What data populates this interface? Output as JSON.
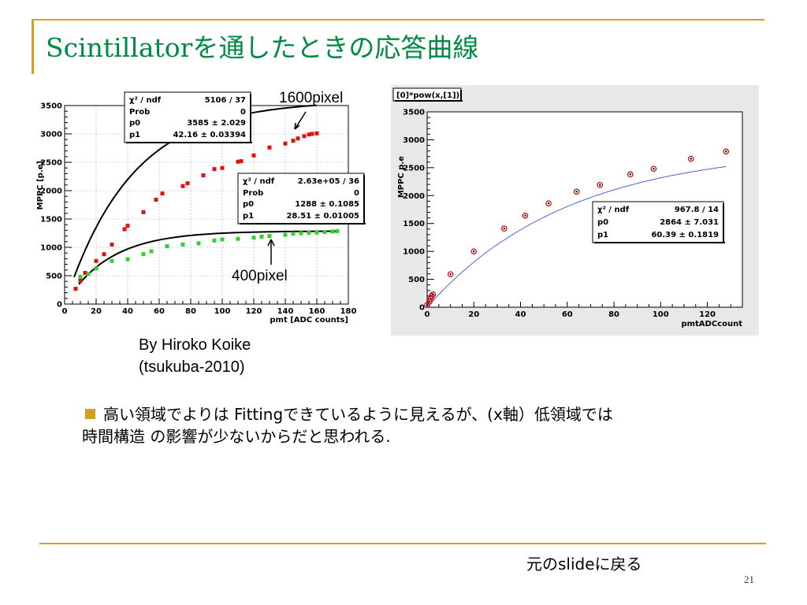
{
  "slide": {
    "title": "Scintillatorを通したときの応答曲線",
    "bullet_line1": "高い領域でよりは Fittingできているように見えるが、(x軸）低領域では",
    "bullet_line2": "時間構造 の影響が少ないからだと思われる.",
    "credit_line1": "By Hiroko Koike",
    "credit_line2": "(tsukuba-2010)",
    "return_link": "元のslideに戻る",
    "page_number": "21",
    "accent_color": "#d4a020",
    "title_color": "#008a44"
  },
  "chart_data": [
    {
      "type": "scatter",
      "title": "",
      "xlabel": "pmt [ADC counts]",
      "ylabel": "MPPC [p.e]",
      "xlim": [
        0,
        180
      ],
      "ylim": [
        0,
        3500
      ],
      "x_ticks": [
        "0",
        "20",
        "40",
        "60",
        "80",
        "100",
        "120",
        "140",
        "160",
        "180"
      ],
      "y_ticks": [
        "0",
        "500",
        "1000",
        "1500",
        "2000",
        "2500",
        "3000",
        "3500"
      ],
      "grid": true,
      "annotations": [
        "1600pixel",
        "400pixel"
      ],
      "series": [
        {
          "name": "1600pixel",
          "color": "#e01010",
          "fit": {
            "p0": 3585,
            "p1": 42.16
          },
          "x": [
            7,
            10,
            13,
            20,
            25,
            30,
            38,
            40,
            50,
            58,
            62,
            75,
            78,
            88,
            95,
            100,
            110,
            112,
            120,
            130,
            140,
            145,
            148,
            152,
            155,
            157,
            160
          ],
          "y": [
            270,
            410,
            550,
            760,
            880,
            1050,
            1320,
            1380,
            1620,
            1840,
            1950,
            2080,
            2130,
            2270,
            2380,
            2400,
            2510,
            2520,
            2620,
            2760,
            2830,
            2880,
            2920,
            2960,
            2990,
            3000,
            3010
          ]
        },
        {
          "name": "400pixel",
          "color": "#30d030",
          "fit": {
            "p0": 1288,
            "p1": 28.51
          },
          "x": [
            10,
            15,
            20,
            30,
            40,
            50,
            55,
            65,
            75,
            85,
            95,
            100,
            110,
            120,
            125,
            130,
            140,
            145,
            150,
            155,
            160,
            165,
            170,
            173
          ],
          "y": [
            480,
            530,
            630,
            760,
            790,
            880,
            930,
            1020,
            1050,
            1070,
            1120,
            1140,
            1150,
            1170,
            1190,
            1200,
            1220,
            1240,
            1250,
            1255,
            1260,
            1270,
            1280,
            1285
          ]
        }
      ],
      "fit_boxes": [
        {
          "chi2_ndf": "5106 / 37",
          "prob": "0",
          "p0": "3585 ± 2.029",
          "p1": "42.16 ± 0.03394"
        },
        {
          "chi2_ndf": "2.63e+05 / 36",
          "prob": "0",
          "p0": "1288 ± 0.1085",
          "p1": "28.51 ± 0.01005"
        }
      ],
      "fit_box_labels": {
        "chi2": "χ² / ndf",
        "prob": "Prob",
        "p0": "p0",
        "p1": "p1"
      }
    },
    {
      "type": "scatter",
      "title": "[0]*pow(x,[1])",
      "xlabel": "pmtADCcount",
      "ylabel": "MPPC p.e",
      "xlim": [
        0,
        135
      ],
      "ylim": [
        0,
        3500
      ],
      "x_ticks": [
        "0",
        "20",
        "40",
        "60",
        "80",
        "100",
        "120"
      ],
      "y_ticks": [
        "0",
        "500",
        "1000",
        "1500",
        "2000",
        "2500",
        "3000",
        "3500"
      ],
      "grid": false,
      "series": [
        {
          "name": "",
          "color": "#cc0000",
          "fit_color": "#5060e0",
          "fit": {
            "p0": 2864,
            "p1": 60.39
          },
          "x": [
            0,
            1,
            1.5,
            2,
            2.5,
            10,
            20,
            33,
            42,
            52,
            64,
            74,
            87,
            97,
            113,
            128
          ],
          "y": [
            40,
            100,
            150,
            200,
            230,
            590,
            1000,
            1410,
            1640,
            1860,
            2070,
            2190,
            2380,
            2480,
            2660,
            2790
          ]
        }
      ],
      "fit_boxes": [
        {
          "chi2_ndf": "967.8 / 14",
          "p0": "2864 ± 7.031",
          "p1": "60.39 ± 0.1819"
        }
      ],
      "fit_box_labels": {
        "chi2": "χ² / ndf",
        "p0": "p0",
        "p1": "p1"
      }
    }
  ]
}
